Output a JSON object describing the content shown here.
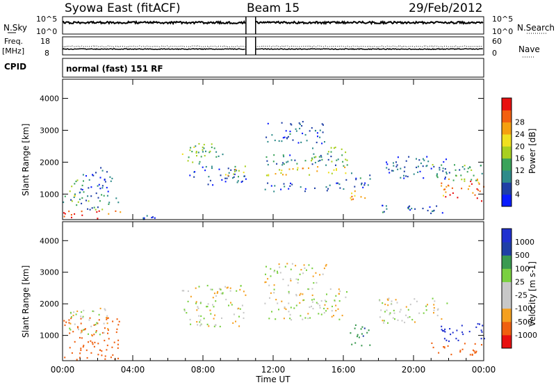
{
  "header": {
    "station": "Syowa East (fitACF)",
    "beam": "Beam 15",
    "date": "29/Feb/2012"
  },
  "noise_panel": {
    "left_label": "N.Sky",
    "right_label": "N.Search",
    "tick_top": "10^5",
    "tick_bottom": "10^0",
    "right_tick_top": "10^5",
    "right_tick_bottom": "10^0"
  },
  "freq_panel": {
    "left_label_line1": "Freq.",
    "left_label_line2": "[MHz]",
    "left_tick_top": "18",
    "left_tick_bottom": "8",
    "right_label": "Nave",
    "right_tick_top": "60",
    "right_tick_bottom": "0"
  },
  "cpid": {
    "label": "CPID",
    "value": "normal (fast) 151 RF"
  },
  "x_axis": {
    "label": "Time UT",
    "ticks": [
      "00:00",
      "04:00",
      "08:00",
      "12:00",
      "16:00",
      "20:00",
      "00:00"
    ],
    "range_hours": [
      0,
      24
    ]
  },
  "colors": {
    "power_scale": [
      "#0a1cff",
      "#1f3fa6",
      "#2e8b8a",
      "#3aa35a",
      "#a8d020",
      "#f0e020",
      "#f5a010",
      "#f26010",
      "#e81010"
    ],
    "velocity_scale": [
      "#e81010",
      "#f06010",
      "#f5a020",
      "#c8c8c8",
      "#c8c8c8",
      "#7ad040",
      "#3a9a50",
      "#1f3fa6",
      "#2030d0"
    ]
  },
  "chart_data": [
    {
      "type": "heatmap",
      "name": "power",
      "ylabel": "Slant Range [km]",
      "yticks": [
        "1000",
        "2000",
        "3000",
        "4000"
      ],
      "ylim": [
        200,
        4600
      ],
      "colorbar_label": "Power [dB]",
      "colorbar_ticks": [
        "4",
        "8",
        "12",
        "16",
        "20",
        "24",
        "28"
      ],
      "colorbar_range": [
        0,
        32
      ],
      "regions": [
        {
          "t": [
            0.0,
            3.4
          ],
          "r": [
            250,
            500
          ],
          "v": 28
        },
        {
          "t": [
            0.0,
            3.2
          ],
          "r": [
            500,
            1000
          ],
          "v": 10
        },
        {
          "t": [
            0.2,
            1.2
          ],
          "r": [
            900,
            1500
          ],
          "v": 14
        },
        {
          "t": [
            0.9,
            2.8
          ],
          "r": [
            1000,
            1900
          ],
          "v": 6
        },
        {
          "t": [
            3.4,
            6.5
          ],
          "r": [
            200,
            350
          ],
          "v": 6
        },
        {
          "t": [
            6.8,
            7.8
          ],
          "r": [
            2000,
            2600
          ],
          "v": 14
        },
        {
          "t": [
            7.6,
            9.2
          ],
          "r": [
            1800,
            2600
          ],
          "v": 12
        },
        {
          "t": [
            7.2,
            10.5
          ],
          "r": [
            1300,
            1900
          ],
          "v": 6
        },
        {
          "t": [
            9.0,
            10.4
          ],
          "r": [
            1600,
            1900
          ],
          "v": 18
        },
        {
          "t": [
            11.5,
            16.2
          ],
          "r": [
            1600,
            1900
          ],
          "v": 20
        },
        {
          "t": [
            11.5,
            16.2
          ],
          "r": [
            1900,
            2300
          ],
          "v": 8
        },
        {
          "t": [
            14.0,
            16.2
          ],
          "r": [
            2000,
            2500
          ],
          "v": 14
        },
        {
          "t": [
            11.5,
            15.0
          ],
          "r": [
            2600,
            3300
          ],
          "v": 6
        },
        {
          "t": [
            11.5,
            16.0
          ],
          "r": [
            1100,
            1400
          ],
          "v": 6
        },
        {
          "t": [
            16.2,
            17.2
          ],
          "r": [
            700,
            1200
          ],
          "v": 22
        },
        {
          "t": [
            16.0,
            17.5
          ],
          "r": [
            1200,
            1700
          ],
          "v": 6
        },
        {
          "t": [
            18.0,
            22.0
          ],
          "r": [
            1500,
            2200
          ],
          "v": 6
        },
        {
          "t": [
            18.0,
            22.0
          ],
          "r": [
            400,
            700
          ],
          "v": 6
        },
        {
          "t": [
            21.5,
            24.0
          ],
          "r": [
            800,
            1500
          ],
          "v": 26
        },
        {
          "t": [
            21.0,
            24.0
          ],
          "r": [
            1400,
            2000
          ],
          "v": 10
        }
      ]
    },
    {
      "type": "heatmap",
      "name": "velocity",
      "ylabel": "Slant Range [km]",
      "yticks": [
        "1000",
        "2000",
        "3000",
        "4000"
      ],
      "ylim": [
        200,
        4600
      ],
      "colorbar_label": "Velocity [m s-1]",
      "colorbar_ticks": [
        "1000",
        "500",
        "100",
        "25",
        "-25",
        "-100",
        "-500",
        "-1000"
      ],
      "regions": [
        {
          "t": [
            0.0,
            3.4
          ],
          "r": [
            250,
            500
          ],
          "v": -300
        },
        {
          "t": [
            0.0,
            3.2
          ],
          "r": [
            500,
            1600
          ],
          "v": -200
        },
        {
          "t": [
            0.3,
            2.8
          ],
          "r": [
            1000,
            1900
          ],
          "v": 0
        },
        {
          "t": [
            6.8,
            10.5
          ],
          "r": [
            1300,
            2600
          ],
          "v": 0
        },
        {
          "t": [
            11.5,
            16.2
          ],
          "r": [
            1500,
            2500
          ],
          "v": 0
        },
        {
          "t": [
            11.5,
            15.0
          ],
          "r": [
            2600,
            3300
          ],
          "v": 0
        },
        {
          "t": [
            16.2,
            17.5
          ],
          "r": [
            700,
            1400
          ],
          "v": 200
        },
        {
          "t": [
            18.0,
            22.0
          ],
          "r": [
            1400,
            2200
          ],
          "v": 0
        },
        {
          "t": [
            21.5,
            24.0
          ],
          "r": [
            800,
            1400
          ],
          "v": 800
        },
        {
          "t": [
            21.0,
            24.0
          ],
          "r": [
            400,
            800
          ],
          "v": -400
        }
      ]
    }
  ]
}
